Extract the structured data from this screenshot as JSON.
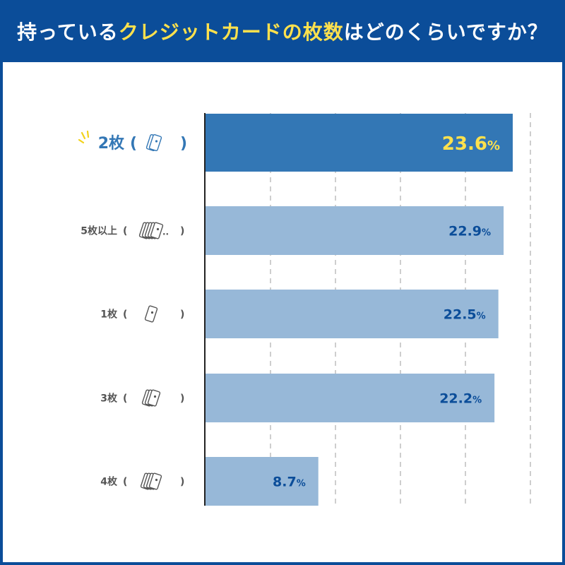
{
  "header": {
    "title_pre": "持っている",
    "title_highlight": "クレジットカードの枚数",
    "title_post": "はどのくらいですか？"
  },
  "colors": {
    "header_bg": "#0b4d99",
    "highlight_text": "#ffe14d",
    "bar_primary": "#3377b5",
    "bar_secondary": "#97b8d8",
    "value_dark": "#0b4d99",
    "label_gray": "#555555"
  },
  "chart_data": {
    "type": "bar",
    "orientation": "horizontal",
    "categories": [
      "2枚",
      "5枚以上",
      "1枚",
      "3枚",
      "4枚"
    ],
    "values": [
      23.6,
      22.9,
      22.5,
      22.2,
      8.7
    ],
    "value_labels": [
      "23.6",
      "22.9",
      "22.5",
      "22.2",
      "8.7"
    ],
    "value_suffix": "%",
    "icons": [
      "two-cards-icon",
      "many-cards-icon",
      "one-card-icon",
      "three-cards-icon",
      "four-cards-icon"
    ],
    "highlight_index": 0,
    "xlim": [
      0,
      25
    ],
    "grid": true
  }
}
